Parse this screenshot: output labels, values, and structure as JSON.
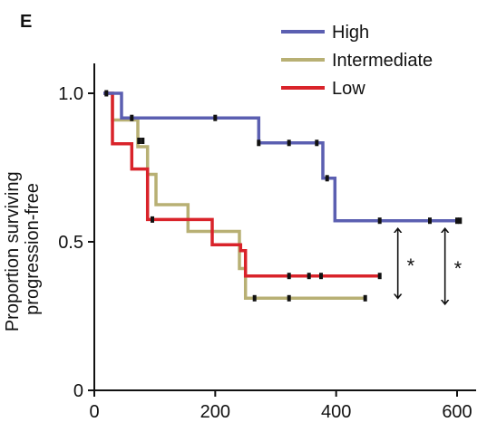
{
  "panel_label": "E",
  "chart_data": {
    "type": "line",
    "subtype": "kaplan-meier step",
    "title": "",
    "xlabel": "",
    "ylabel_lines": [
      "Proportion surviving",
      "progression-free"
    ],
    "xlim": [
      0,
      600
    ],
    "ylim": [
      0,
      1.0
    ],
    "x_ticks": [
      0,
      200,
      400,
      600
    ],
    "x_tick_labels": [
      "0",
      "200",
      "400",
      "600"
    ],
    "y_ticks": [
      0,
      0.5,
      1.0
    ],
    "y_tick_labels": [
      "0",
      "0.5",
      "1.0"
    ],
    "grid": false,
    "legend_position": "top-right",
    "series": [
      {
        "name": "High",
        "color": "#5b5fb1",
        "steps": [
          [
            15,
            1.0
          ],
          [
            45,
            1.0
          ],
          [
            45,
            0.917
          ],
          [
            272,
            0.917
          ],
          [
            272,
            0.833
          ],
          [
            378,
            0.833
          ],
          [
            378,
            0.714
          ],
          [
            398,
            0.714
          ],
          [
            398,
            0.571
          ],
          [
            605,
            0.571
          ]
        ],
        "censors": [
          [
            20,
            1.0
          ],
          [
            62,
            0.917
          ],
          [
            200,
            0.917
          ],
          [
            272,
            0.833
          ],
          [
            322,
            0.833
          ],
          [
            368,
            0.833
          ],
          [
            385,
            0.714
          ],
          [
            472,
            0.571
          ],
          [
            555,
            0.571
          ],
          [
            600,
            0.571
          ],
          [
            605,
            0.571
          ]
        ]
      },
      {
        "name": "Intermediate",
        "color": "#b8b074",
        "steps": [
          [
            15,
            1.0
          ],
          [
            30,
            1.0
          ],
          [
            30,
            0.91
          ],
          [
            72,
            0.91
          ],
          [
            72,
            0.82
          ],
          [
            88,
            0.82
          ],
          [
            88,
            0.727
          ],
          [
            102,
            0.727
          ],
          [
            102,
            0.625
          ],
          [
            155,
            0.625
          ],
          [
            155,
            0.535
          ],
          [
            240,
            0.535
          ],
          [
            240,
            0.41
          ],
          [
            250,
            0.41
          ],
          [
            250,
            0.31
          ],
          [
            448,
            0.31
          ]
        ],
        "censors": [
          [
            74,
            0.84
          ],
          [
            80,
            0.84
          ],
          [
            265,
            0.31
          ],
          [
            322,
            0.31
          ],
          [
            448,
            0.31
          ]
        ]
      },
      {
        "name": "Low",
        "color": "#d9232a",
        "steps": [
          [
            15,
            1.0
          ],
          [
            30,
            1.0
          ],
          [
            30,
            0.83
          ],
          [
            62,
            0.83
          ],
          [
            62,
            0.745
          ],
          [
            88,
            0.745
          ],
          [
            88,
            0.575
          ],
          [
            195,
            0.575
          ],
          [
            195,
            0.49
          ],
          [
            242,
            0.49
          ],
          [
            242,
            0.47
          ],
          [
            250,
            0.47
          ],
          [
            250,
            0.385
          ],
          [
            472,
            0.385
          ]
        ],
        "censors": [
          [
            96,
            0.575
          ],
          [
            322,
            0.385
          ],
          [
            355,
            0.385
          ],
          [
            375,
            0.385
          ],
          [
            472,
            0.385
          ]
        ]
      }
    ],
    "annotations": [
      {
        "type": "double-arrow",
        "x": 502,
        "y_from": 0.31,
        "y_to": 0.545,
        "label": "*"
      },
      {
        "type": "double-arrow",
        "x": 580,
        "y_from": 0.29,
        "y_to": 0.545,
        "label": "*"
      }
    ]
  }
}
